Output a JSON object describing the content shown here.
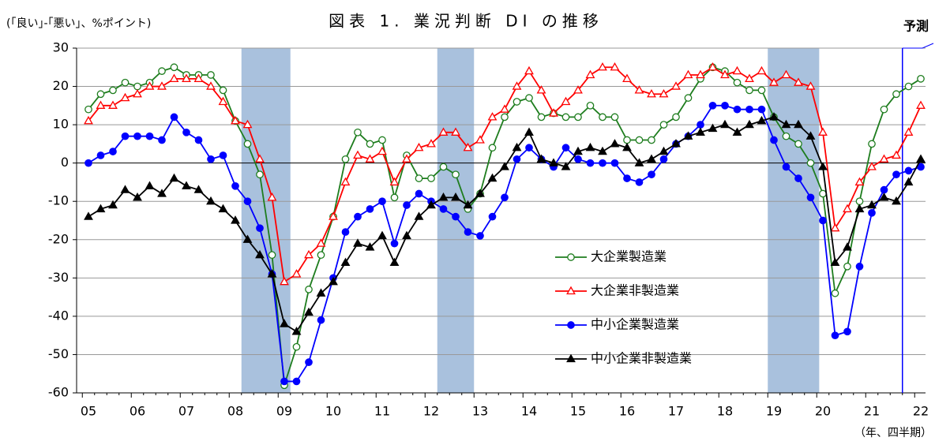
{
  "chart_data": {
    "type": "line",
    "title": "図表 1. 業況判断 DI の推移",
    "y_axis_label": "(｢良い｣-｢悪い｣、%ポイント)",
    "x_axis_label": "（年、四半期）",
    "annotation": "予測",
    "forecast_start": 66.5,
    "shaded_ranges": [
      [
        12.5,
        16.5
      ],
      [
        28.5,
        31.5
      ],
      [
        55.5,
        59.7
      ]
    ],
    "categories": [
      "05",
      null,
      null,
      null,
      "06",
      null,
      null,
      null,
      "07",
      null,
      null,
      null,
      "08",
      null,
      null,
      null,
      "09",
      null,
      null,
      null,
      "10",
      null,
      null,
      null,
      "11",
      null,
      null,
      null,
      "12",
      null,
      null,
      null,
      "13",
      null,
      null,
      null,
      "14",
      null,
      null,
      null,
      "15",
      null,
      null,
      null,
      "16",
      null,
      null,
      null,
      "17",
      null,
      null,
      null,
      "18",
      null,
      null,
      null,
      "19",
      null,
      null,
      null,
      "20",
      null,
      null,
      null,
      "21",
      null,
      null,
      null,
      "22"
    ],
    "ylim": [
      -60,
      30
    ],
    "yticks": [
      -60,
      -50,
      -40,
      -30,
      -20,
      -10,
      0,
      10,
      20,
      30
    ],
    "grid": true,
    "series": [
      {
        "name": "大企業製造業",
        "color": "#1e7d1e",
        "marker": "open-circle",
        "values": [
          14,
          18,
          19,
          21,
          20,
          21,
          24,
          25,
          23,
          23,
          23,
          19,
          11,
          5,
          -3,
          -24,
          -58,
          -48,
          -33,
          -24,
          -14,
          1,
          8,
          5,
          6,
          -9,
          2,
          -4,
          -4,
          -1,
          -3,
          -12,
          -8,
          4,
          12,
          16,
          17,
          12,
          13,
          12,
          12,
          15,
          12,
          12,
          6,
          6,
          6,
          10,
          12,
          17,
          22,
          25,
          24,
          21,
          19,
          19,
          12,
          7,
          5,
          0,
          -8,
          -34,
          -27,
          -10,
          5,
          14,
          18,
          20,
          22
        ]
      },
      {
        "name": "大企業非製造業",
        "color": "#ff0000",
        "marker": "open-triangle",
        "values": [
          11,
          15,
          15,
          17,
          18,
          20,
          20,
          22,
          22,
          22,
          20,
          16,
          11,
          10,
          1,
          -9,
          -31,
          -29,
          -24,
          -21,
          -14,
          -5,
          2,
          1,
          3,
          -5,
          1,
          4,
          5,
          8,
          8,
          4,
          6,
          12,
          14,
          20,
          24,
          19,
          13,
          16,
          19,
          23,
          25,
          25,
          22,
          19,
          18,
          18,
          20,
          23,
          23,
          25,
          23,
          24,
          22,
          24,
          21,
          23,
          21,
          20,
          8,
          -17,
          -12,
          -5,
          -1,
          1,
          2,
          8,
          15
        ]
      },
      {
        "name": "中小企業製造業",
        "color": "#0000ff",
        "marker": "circle",
        "values": [
          0,
          2,
          3,
          7,
          7,
          7,
          6,
          12,
          8,
          6,
          1,
          2,
          -6,
          -10,
          -17,
          -29,
          -57,
          -57,
          -52,
          -41,
          -30,
          -18,
          -14,
          -12,
          -10,
          -21,
          -11,
          -8,
          -10,
          -12,
          -14,
          -18,
          -19,
          -14,
          -9,
          1,
          4,
          1,
          -1,
          4,
          1,
          0,
          0,
          0,
          -4,
          -5,
          -3,
          1,
          5,
          7,
          10,
          15,
          15,
          14,
          14,
          14,
          6,
          -1,
          -4,
          -9,
          -15,
          -45,
          -44,
          -27,
          -13,
          -7,
          -3,
          -2,
          -1
        ]
      },
      {
        "name": "中小企業非製造業",
        "color": "#000000",
        "marker": "triangle",
        "values": [
          -14,
          -12,
          -11,
          -7,
          -9,
          -6,
          -8,
          -4,
          -6,
          -7,
          -10,
          -12,
          -15,
          -20,
          -24,
          -29,
          -42,
          -44,
          -39,
          -34,
          -31,
          -26,
          -21,
          -22,
          -19,
          -26,
          -19,
          -14,
          -11,
          -9,
          -9,
          -11,
          -8,
          -4,
          -1,
          4,
          8,
          1,
          0,
          -1,
          3,
          4,
          3,
          5,
          4,
          0,
          1,
          3,
          5,
          7,
          8,
          9,
          10,
          8,
          10,
          11,
          12,
          10,
          10,
          7,
          -1,
          -26,
          -22,
          -12,
          -11,
          -9,
          -10,
          -5,
          1
        ]
      }
    ]
  }
}
